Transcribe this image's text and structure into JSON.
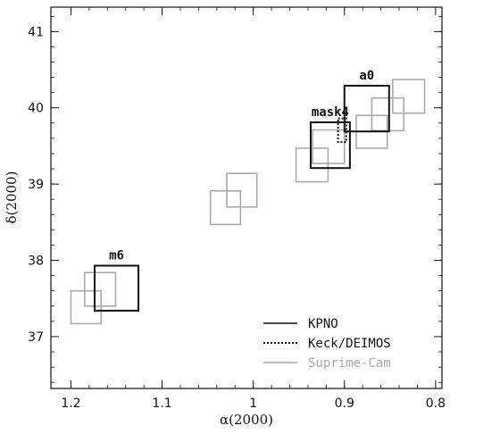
{
  "chart_data": {
    "type": "scatter",
    "xlabel": "α(2000)",
    "ylabel": "δ(2000)",
    "xlim": [
      1.222,
      0.793
    ],
    "ylim": [
      36.32,
      41.32
    ],
    "x_reversed": true,
    "xticks": [
      1.2,
      1.1,
      1.0,
      0.9,
      0.8
    ],
    "xtick_labels": [
      "1.2",
      "1.1",
      "1",
      "0.9",
      "0.8"
    ],
    "yticks": [
      37,
      38,
      39,
      40,
      41
    ],
    "ytick_labels": [
      "37",
      "38",
      "39",
      "40",
      "41"
    ],
    "grid": false,
    "legend_position": "bottom-right",
    "series": [
      {
        "name": "KPNO",
        "color": "#111111",
        "style": "solid",
        "fields": [
          {
            "label": "m6",
            "ra": [
              1.174,
              1.126
            ],
            "dec": [
              37.34,
              37.93
            ]
          },
          {
            "label": "mask4",
            "ra": [
              0.937,
              0.894
            ],
            "dec": [
              39.21,
              39.81
            ]
          },
          {
            "label": "a0",
            "ra": [
              0.9,
              0.851
            ],
            "dec": [
              39.69,
              40.29
            ]
          }
        ]
      },
      {
        "name": "Keck/DEIMOS",
        "color": "#111111",
        "style": "dotted",
        "fields": [
          {
            "label": "",
            "ra": [
              0.907,
              0.898
            ],
            "dec": [
              39.55,
              39.86
            ]
          }
        ]
      },
      {
        "name": "Suprime-Cam",
        "color": "#aaaaaa",
        "style": "solid",
        "fields": [
          {
            "label": "",
            "ra": [
              1.2,
              1.167
            ],
            "dec": [
              37.17,
              37.6
            ]
          },
          {
            "label": "",
            "ra": [
              1.185,
              1.151
            ],
            "dec": [
              37.4,
              37.84
            ]
          },
          {
            "label": "",
            "ra": [
              1.047,
              1.014
            ],
            "dec": [
              38.47,
              38.91
            ]
          },
          {
            "label": "",
            "ra": [
              1.029,
              0.996
            ],
            "dec": [
              38.7,
              39.14
            ]
          },
          {
            "label": "",
            "ra": [
              0.953,
              0.918
            ],
            "dec": [
              39.03,
              39.47
            ]
          },
          {
            "label": "",
            "ra": [
              0.935,
              0.9
            ],
            "dec": [
              39.27,
              39.71
            ]
          },
          {
            "label": "",
            "ra": [
              0.887,
              0.853
            ],
            "dec": [
              39.47,
              39.9
            ]
          },
          {
            "label": "",
            "ra": [
              0.87,
              0.835
            ],
            "dec": [
              39.7,
              40.13
            ]
          },
          {
            "label": "",
            "ra": [
              0.847,
              0.812
            ],
            "dec": [
              39.93,
              40.37
            ]
          }
        ]
      }
    ]
  }
}
